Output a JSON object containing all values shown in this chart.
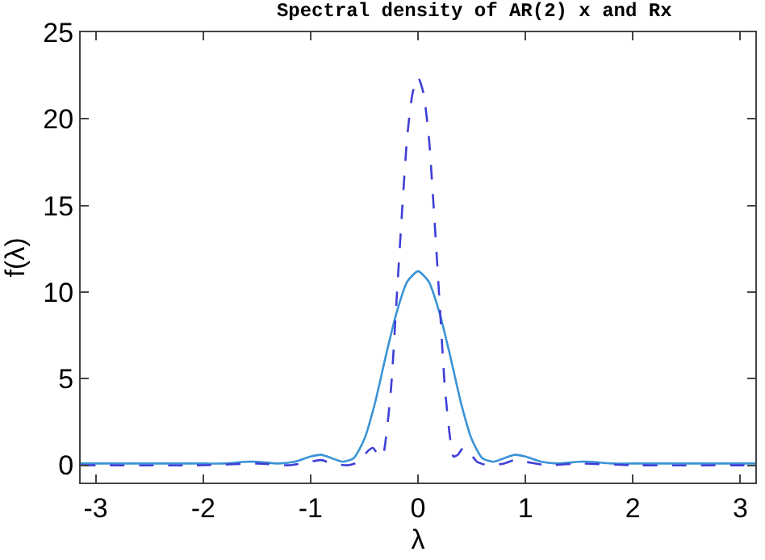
{
  "chart_data": {
    "type": "line",
    "title": "Spectral density of AR(2) x and Rx",
    "xlabel": "λ",
    "ylabel": "f(λ)",
    "xlim": [
      -3.14,
      3.14
    ],
    "ylim": [
      -1,
      25
    ],
    "xticks": [
      -3,
      -2,
      -1,
      0,
      1,
      2,
      3
    ],
    "yticks": [
      0,
      5,
      10,
      15,
      20,
      25
    ],
    "grid": false,
    "series": [
      {
        "color": "#3a93d6",
        "line_style": "solid",
        "x": [
          -3.14,
          -2.5,
          -2.2,
          -2.0,
          -1.8,
          -1.6,
          -1.5,
          -1.3,
          -1.15,
          -1.0,
          -0.9,
          -0.8,
          -0.7,
          -0.6,
          -0.5,
          -0.4,
          -0.3,
          -0.2,
          -0.1,
          0,
          0.1,
          0.2,
          0.3,
          0.4,
          0.5,
          0.6,
          0.7,
          0.8,
          0.9,
          1.0,
          1.15,
          1.3,
          1.5,
          1.6,
          1.8,
          2.0,
          2.2,
          2.5,
          3.14
        ],
        "values": [
          0.1,
          0.1,
          0.1,
          0.1,
          0.1,
          0.2,
          0.2,
          0.1,
          0.2,
          0.5,
          0.6,
          0.4,
          0.2,
          0.4,
          1.5,
          3.6,
          6.3,
          8.8,
          10.6,
          11.2,
          10.6,
          8.8,
          6.3,
          3.6,
          1.5,
          0.4,
          0.2,
          0.4,
          0.6,
          0.5,
          0.2,
          0.1,
          0.2,
          0.2,
          0.1,
          0.1,
          0.1,
          0.1,
          0.1
        ]
      },
      {
        "color": "#3f3fd8",
        "line_style": "dashed",
        "x": [
          -3.14,
          -2.0,
          -1.5,
          -1.2,
          -1.0,
          -0.9,
          -0.8,
          -0.65,
          -0.55,
          -0.47,
          -0.42,
          -0.37,
          -0.33,
          -0.3,
          -0.25,
          -0.2,
          -0.15,
          -0.1,
          -0.05,
          0,
          0.05,
          0.1,
          0.15,
          0.2,
          0.25,
          0.3,
          0.33,
          0.37,
          0.42,
          0.47,
          0.55,
          0.65,
          0.8,
          0.9,
          1.0,
          1.2,
          1.5,
          2.0,
          3.14
        ],
        "values": [
          0,
          0,
          0.1,
          0,
          0.2,
          0.3,
          0.1,
          0,
          0.2,
          0.8,
          1.0,
          0.6,
          0.5,
          1.5,
          4.5,
          9.5,
          14.5,
          19,
          21.5,
          22.4,
          21.5,
          19,
          14.5,
          9.5,
          4.5,
          1.5,
          0.5,
          0.6,
          1.0,
          0.8,
          0.2,
          0,
          0.1,
          0.3,
          0.2,
          0,
          0.1,
          0,
          0
        ]
      }
    ]
  }
}
